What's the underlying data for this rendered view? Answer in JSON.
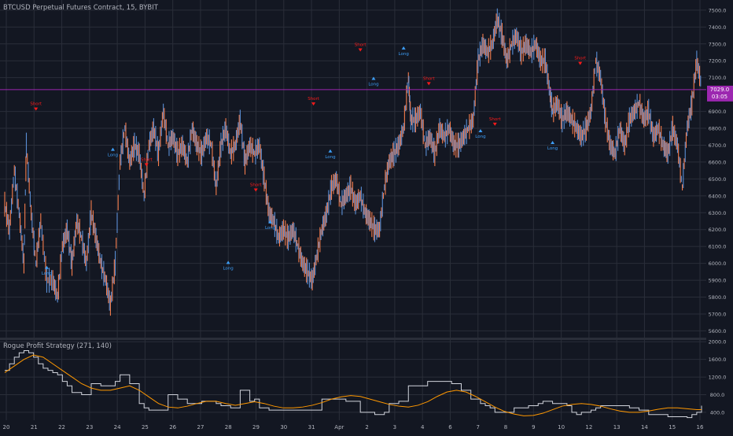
{
  "chart_data": [
    {
      "type": "candlestick",
      "title": "BTCUSD Perpetual Futures Contract, 15, BYBIT",
      "price_axis": [
        7500.0,
        7400.0,
        7300.0,
        7200.0,
        7100.0,
        6900.0,
        6800.0,
        6700.0,
        6600.0,
        6500.0,
        6400.0,
        6300.0,
        6200.0,
        6100.0,
        6000.0,
        5900.0,
        5800.0,
        5700.0,
        5600.0
      ],
      "price_axis_labels": [
        "7500.0",
        "7400.0",
        "7300.0",
        "7200.0",
        "7100.0",
        "6900.0",
        "6800.0",
        "6700.0",
        "6600.0",
        "6500.0",
        "6400.0",
        "6300.0",
        "6200.0",
        "6100.0",
        "6000.0",
        "5900.0",
        "5800.0",
        "5700.0",
        "5600.0"
      ],
      "ylim": [
        5560,
        7560
      ],
      "current_price": 7029.0,
      "current_price_label": "7029.0",
      "countdown_label": "03:05",
      "x_ticks": [
        "20",
        "21",
        "22",
        "23",
        "24",
        "25",
        "26",
        "27",
        "28",
        "29",
        "30",
        "31",
        "Apr",
        "2",
        "3",
        "4",
        "6",
        "7",
        "8",
        "9",
        "10",
        "12",
        "13",
        "14",
        "15",
        "16"
      ],
      "price_path": [
        [
          0,
          6350
        ],
        [
          4,
          6200
        ],
        [
          8,
          6550
        ],
        [
          12,
          6300
        ],
        [
          16,
          6000
        ],
        [
          18,
          6700
        ],
        [
          22,
          6300
        ],
        [
          26,
          6000
        ],
        [
          30,
          6250
        ],
        [
          35,
          5900
        ],
        [
          40,
          5900
        ],
        [
          44,
          5800
        ],
        [
          48,
          6100
        ],
        [
          52,
          6200
        ],
        [
          56,
          6000
        ],
        [
          60,
          6250
        ],
        [
          64,
          6150
        ],
        [
          68,
          6000
        ],
        [
          72,
          6300
        ],
        [
          76,
          6150
        ],
        [
          80,
          6000
        ],
        [
          84,
          5900
        ],
        [
          88,
          5750
        ],
        [
          92,
          6000
        ],
        [
          96,
          6600
        ],
        [
          100,
          6800
        ],
        [
          104,
          6600
        ],
        [
          108,
          6700
        ],
        [
          112,
          6650
        ],
        [
          116,
          6400
        ],
        [
          120,
          6700
        ],
        [
          124,
          6800
        ],
        [
          128,
          6650
        ],
        [
          132,
          6900
        ],
        [
          136,
          6700
        ],
        [
          140,
          6750
        ],
        [
          144,
          6650
        ],
        [
          148,
          6700
        ],
        [
          152,
          6600
        ],
        [
          156,
          6800
        ],
        [
          160,
          6700
        ],
        [
          164,
          6650
        ],
        [
          168,
          6750
        ],
        [
          172,
          6700
        ],
        [
          176,
          6450
        ],
        [
          180,
          6700
        ],
        [
          184,
          6800
        ],
        [
          188,
          6650
        ],
        [
          192,
          6700
        ],
        [
          196,
          6850
        ],
        [
          200,
          6600
        ],
        [
          204,
          6700
        ],
        [
          208,
          6650
        ],
        [
          212,
          6700
        ],
        [
          216,
          6500
        ],
        [
          220,
          6300
        ],
        [
          224,
          6250
        ],
        [
          228,
          6150
        ],
        [
          232,
          6200
        ],
        [
          236,
          6150
        ],
        [
          240,
          6200
        ],
        [
          244,
          6100
        ],
        [
          248,
          6000
        ],
        [
          252,
          5950
        ],
        [
          256,
          5900
        ],
        [
          260,
          6050
        ],
        [
          264,
          6200
        ],
        [
          268,
          6300
        ],
        [
          272,
          6450
        ],
        [
          276,
          6500
        ],
        [
          280,
          6350
        ],
        [
          284,
          6400
        ],
        [
          288,
          6450
        ],
        [
          292,
          6350
        ],
        [
          296,
          6400
        ],
        [
          300,
          6300
        ],
        [
          304,
          6250
        ],
        [
          308,
          6200
        ],
        [
          312,
          6200
        ],
        [
          316,
          6450
        ],
        [
          320,
          6600
        ],
        [
          324,
          6650
        ],
        [
          328,
          6700
        ],
        [
          332,
          6800
        ],
        [
          336,
          7100
        ],
        [
          338,
          6850
        ],
        [
          342,
          6850
        ],
        [
          346,
          6900
        ],
        [
          350,
          6700
        ],
        [
          354,
          6750
        ],
        [
          358,
          6650
        ],
        [
          362,
          6800
        ],
        [
          366,
          6750
        ],
        [
          370,
          6800
        ],
        [
          374,
          6700
        ],
        [
          378,
          6700
        ],
        [
          382,
          6750
        ],
        [
          386,
          6800
        ],
        [
          390,
          6850
        ],
        [
          394,
          7200
        ],
        [
          398,
          7300
        ],
        [
          402,
          7250
        ],
        [
          406,
          7300
        ],
        [
          410,
          7450
        ],
        [
          414,
          7350
        ],
        [
          418,
          7200
        ],
        [
          422,
          7300
        ],
        [
          426,
          7350
        ],
        [
          430,
          7250
        ],
        [
          434,
          7300
        ],
        [
          438,
          7250
        ],
        [
          442,
          7300
        ],
        [
          446,
          7200
        ],
        [
          450,
          7200
        ],
        [
          454,
          7000
        ],
        [
          456,
          6900
        ],
        [
          460,
          6950
        ],
        [
          464,
          6850
        ],
        [
          468,
          6900
        ],
        [
          472,
          6850
        ],
        [
          476,
          6800
        ],
        [
          480,
          6750
        ],
        [
          484,
          6800
        ],
        [
          488,
          6900
        ],
        [
          492,
          7200
        ],
        [
          496,
          7100
        ],
        [
          500,
          6850
        ],
        [
          504,
          6700
        ],
        [
          508,
          6650
        ],
        [
          512,
          6800
        ],
        [
          516,
          6700
        ],
        [
          520,
          6850
        ],
        [
          524,
          6900
        ],
        [
          528,
          6950
        ],
        [
          532,
          6850
        ],
        [
          536,
          6900
        ],
        [
          540,
          6750
        ],
        [
          544,
          6800
        ],
        [
          548,
          6700
        ],
        [
          552,
          6650
        ],
        [
          556,
          6800
        ],
        [
          560,
          6700
        ],
        [
          564,
          6450
        ],
        [
          568,
          6800
        ],
        [
          572,
          6950
        ],
        [
          576,
          7200
        ],
        [
          580,
          7050
        ]
      ],
      "signals": [
        {
          "type": "short",
          "label": "Short",
          "x": 26,
          "y": 6900
        },
        {
          "type": "long",
          "label": "Long",
          "x": 35,
          "y": 5990
        },
        {
          "type": "long",
          "label": "Long",
          "x": 90,
          "y": 6690
        },
        {
          "type": "short",
          "label": "Short",
          "x": 118,
          "y": 6570
        },
        {
          "type": "long",
          "label": "Long",
          "x": 186,
          "y": 6020
        },
        {
          "type": "short",
          "label": "Short",
          "x": 209,
          "y": 6420
        },
        {
          "type": "long",
          "label": "Long",
          "x": 221,
          "y": 6260
        },
        {
          "type": "short",
          "label": "Short",
          "x": 257,
          "y": 6930
        },
        {
          "type": "long",
          "label": "Long",
          "x": 271,
          "y": 6680
        },
        {
          "type": "short",
          "label": "Short",
          "x": 296,
          "y": 7250
        },
        {
          "type": "long",
          "label": "Long",
          "x": 307,
          "y": 7110
        },
        {
          "type": "long",
          "label": "Long",
          "x": 332,
          "y": 7290
        },
        {
          "type": "short",
          "label": "Short",
          "x": 353,
          "y": 7050
        },
        {
          "type": "long",
          "label": "Long",
          "x": 396,
          "y": 6800
        },
        {
          "type": "short",
          "label": "Short",
          "x": 408,
          "y": 6810
        },
        {
          "type": "long",
          "label": "Long",
          "x": 456,
          "y": 6730
        },
        {
          "type": "short",
          "label": "Short",
          "x": 479,
          "y": 7170
        }
      ]
    },
    {
      "type": "line",
      "title": "Rogue Profit Strategy (271, 140)",
      "y_axis": [
        2000.0,
        1600.0,
        1200.0,
        800.0,
        400.0
      ],
      "y_axis_labels": [
        "2000.0",
        "1600.0",
        "1200.0",
        "800.0",
        "400.0"
      ],
      "ylim": [
        220,
        2040
      ],
      "series": [
        {
          "color": "#d1d4dc",
          "x": [
            0,
            4,
            8,
            12,
            16,
            20,
            24,
            28,
            32,
            36,
            40,
            44,
            48,
            52,
            56,
            60,
            64,
            68,
            72,
            76,
            80,
            84,
            88,
            92,
            96,
            100,
            104,
            108,
            112,
            116,
            120,
            124,
            128,
            132,
            136,
            140,
            144,
            148,
            152,
            156,
            160,
            164,
            168,
            172,
            176,
            180,
            184,
            188,
            192,
            196,
            200,
            204,
            208,
            212,
            216,
            220,
            224,
            228,
            232,
            236,
            240,
            244,
            248,
            256,
            260,
            264,
            268,
            272,
            276,
            280,
            284,
            288,
            292,
            296,
            300,
            304,
            308,
            312,
            316,
            320,
            324,
            328,
            332,
            336,
            340,
            344,
            348,
            352,
            356,
            360,
            364,
            368,
            372,
            376,
            380,
            384,
            388,
            392,
            396,
            400,
            404,
            408,
            412,
            416,
            420,
            424,
            428,
            432,
            436,
            440,
            444,
            448,
            452,
            456,
            460,
            464,
            468,
            472,
            476,
            480,
            484,
            488,
            492,
            496,
            500,
            504,
            508,
            512,
            516,
            520,
            524,
            528,
            532,
            536,
            540,
            544,
            548,
            552,
            556,
            560,
            564,
            568,
            572,
            576,
            580
          ],
          "values": [
            1350,
            1500,
            1650,
            1750,
            1800,
            1750,
            1650,
            1500,
            1400,
            1350,
            1300,
            1250,
            1100,
            1000,
            850,
            850,
            800,
            800,
            1050,
            1050,
            1000,
            1000,
            1000,
            1100,
            1250,
            1250,
            1050,
            1050,
            600,
            500,
            450,
            450,
            450,
            450,
            800,
            800,
            700,
            700,
            600,
            600,
            600,
            650,
            650,
            650,
            600,
            550,
            550,
            500,
            500,
            900,
            900,
            650,
            700,
            500,
            500,
            450,
            450,
            450,
            450,
            450,
            450,
            450,
            450,
            450,
            450,
            700,
            700,
            700,
            700,
            700,
            650,
            650,
            650,
            400,
            400,
            400,
            350,
            350,
            400,
            600,
            600,
            650,
            650,
            1000,
            1000,
            1000,
            1000,
            1100,
            1100,
            1100,
            1100,
            1100,
            1050,
            1050,
            900,
            900,
            700,
            700,
            600,
            550,
            500,
            400,
            400,
            400,
            400,
            500,
            500,
            500,
            550,
            550,
            600,
            650,
            650,
            600,
            600,
            600,
            550,
            400,
            350,
            400,
            400,
            450,
            500,
            550,
            550,
            550,
            550,
            550,
            550,
            500,
            500,
            450,
            450,
            350,
            350,
            350,
            350,
            300,
            300,
            300,
            300,
            280,
            350,
            400,
            550
          ]
        },
        {
          "color": "#ff9800",
          "x": [
            0,
            8,
            16,
            24,
            32,
            40,
            48,
            56,
            64,
            72,
            80,
            88,
            96,
            104,
            112,
            120,
            128,
            136,
            144,
            152,
            160,
            168,
            176,
            184,
            192,
            200,
            208,
            216,
            224,
            232,
            240,
            248,
            256,
            264,
            272,
            280,
            288,
            296,
            304,
            312,
            320,
            328,
            336,
            344,
            352,
            360,
            368,
            376,
            384,
            392,
            400,
            408,
            416,
            424,
            432,
            440,
            448,
            456,
            464,
            472,
            480,
            488,
            496,
            504,
            512,
            520,
            528,
            536,
            544,
            552,
            560,
            568,
            576,
            580
          ],
          "values": [
            1300,
            1450,
            1600,
            1700,
            1650,
            1500,
            1350,
            1200,
            1050,
            950,
            900,
            900,
            950,
            1000,
            900,
            750,
            600,
            520,
            500,
            540,
            600,
            650,
            650,
            600,
            560,
            600,
            640,
            600,
            540,
            500,
            500,
            520,
            560,
            620,
            700,
            750,
            780,
            760,
            700,
            640,
            580,
            540,
            520,
            560,
            640,
            760,
            860,
            900,
            860,
            760,
            640,
            520,
            420,
            360,
            320,
            330,
            380,
            460,
            540,
            580,
            600,
            580,
            540,
            480,
            430,
            400,
            400,
            430,
            470,
            500,
            500,
            480,
            460,
            460
          ]
        }
      ],
      "x_ticks": [
        "20",
        "21",
        "22",
        "23",
        "24",
        "25",
        "26",
        "27",
        "28",
        "29",
        "30",
        "31",
        "Apr",
        "2",
        "3",
        "4",
        "6",
        "7",
        "8",
        "9",
        "10",
        "12",
        "13",
        "14",
        "15",
        "16"
      ]
    }
  ],
  "colors": {
    "background": "#131722",
    "grid": "#2a2e39",
    "text": "#b2b5be",
    "short": "#ff1a1a",
    "long": "#3d9df5",
    "line_white": "#d1d4dc",
    "line_orange": "#ff9800",
    "price_line": "#9c27b0",
    "price_label_bg": "#9c27b0"
  }
}
